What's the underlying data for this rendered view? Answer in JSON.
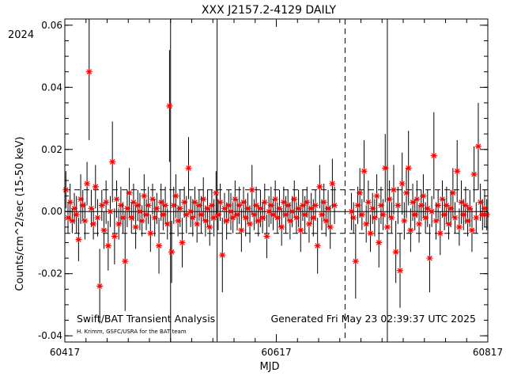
{
  "chart_data": {
    "type": "scatter",
    "title": "XXX J2157.2-4129 DAILY",
    "year_label": "2024",
    "xlabel": "MJD",
    "ylabel": "Counts/cm^2/sec (15-50 keV)",
    "xlim": [
      60417,
      60817
    ],
    "ylim": [
      -0.042,
      0.062
    ],
    "x_ticks": [
      "60417",
      "60617",
      "60817"
    ],
    "y_ticks": [
      "-0.04",
      "-0.02",
      "0.00",
      "0.02",
      "0.04",
      "0.06"
    ],
    "y_tick_values": [
      -0.04,
      -0.02,
      0.0,
      0.02,
      0.04,
      0.06
    ],
    "x_tick_values": [
      60417,
      60617,
      60817
    ],
    "reference_lines": {
      "mean": 0.0,
      "upper": 0.007,
      "lower": -0.007,
      "vertical_solid": [
        60517,
        60561,
        60722
      ],
      "vertical_dashed": 60682
    },
    "footer_left": "Swift/BAT Transient Analysis",
    "footer_credit": "H. Krimm, GSFC/USRA for the BAT team",
    "footer_right": "Generated Fri May 23 02:39:37 UTC 2025",
    "marker_color": "#ff0000",
    "series": [
      {
        "points": [
          [
            60418,
            0.007,
            0.006
          ],
          [
            60420,
            -0.002,
            0.005
          ],
          [
            60422,
            0.003,
            0.006
          ],
          [
            60424,
            -0.003,
            0.004
          ],
          [
            60426,
            0.001,
            0.005
          ],
          [
            60428,
            -0.001,
            0.006
          ],
          [
            60430,
            -0.009,
            0.007
          ],
          [
            60432,
            0.004,
            0.008
          ],
          [
            60434,
            0.002,
            0.005
          ],
          [
            60436,
            -0.003,
            0.006
          ],
          [
            60438,
            0.009,
            0.007
          ],
          [
            60440,
            0.045,
            0.022
          ],
          [
            60442,
            0.001,
            0.006
          ],
          [
            60444,
            -0.004,
            0.005
          ],
          [
            60446,
            0.008,
            0.007
          ],
          [
            60448,
            -0.002,
            0.006
          ],
          [
            60450,
            -0.024,
            0.012
          ],
          [
            60452,
            0.002,
            0.005
          ],
          [
            60454,
            -0.006,
            0.006
          ],
          [
            60456,
            0.003,
            0.007
          ],
          [
            60458,
            -0.011,
            0.008
          ],
          [
            60460,
            0.0,
            0.005
          ],
          [
            60462,
            0.016,
            0.013
          ],
          [
            60464,
            -0.008,
            0.009
          ],
          [
            60466,
            0.004,
            0.006
          ],
          [
            60468,
            -0.004,
            0.005
          ],
          [
            60470,
            0.002,
            0.006
          ],
          [
            60472,
            -0.002,
            0.005
          ],
          [
            60474,
            -0.016,
            0.016
          ],
          [
            60476,
            0.001,
            0.006
          ],
          [
            60478,
            0.006,
            0.008
          ],
          [
            60480,
            -0.002,
            0.005
          ],
          [
            60482,
            0.003,
            0.006
          ],
          [
            60484,
            -0.005,
            0.007
          ],
          [
            60486,
            0.002,
            0.005
          ],
          [
            60488,
            0.0,
            0.006
          ],
          [
            60490,
            -0.003,
            0.005
          ],
          [
            60492,
            0.005,
            0.007
          ],
          [
            60494,
            -0.001,
            0.005
          ],
          [
            60496,
            0.002,
            0.006
          ],
          [
            60498,
            -0.007,
            0.006
          ],
          [
            60500,
            0.004,
            0.005
          ],
          [
            60502,
            -0.002,
            0.006
          ],
          [
            60504,
            0.001,
            0.005
          ],
          [
            60506,
            -0.011,
            0.009
          ],
          [
            60508,
            0.003,
            0.006
          ],
          [
            60510,
            -0.001,
            0.005
          ],
          [
            60512,
            0.002,
            0.006
          ],
          [
            60514,
            -0.004,
            0.005
          ],
          [
            60516,
            0.034,
            0.018
          ],
          [
            60518,
            -0.013,
            0.01
          ],
          [
            60520,
            0.002,
            0.006
          ],
          [
            60522,
            0.005,
            0.007
          ],
          [
            60524,
            -0.003,
            0.005
          ],
          [
            60526,
            0.001,
            0.006
          ],
          [
            60528,
            -0.01,
            0.008
          ],
          [
            60530,
            0.003,
            0.005
          ],
          [
            60532,
            -0.001,
            0.006
          ],
          [
            60534,
            0.014,
            0.01
          ],
          [
            60536,
            0.0,
            0.005
          ],
          [
            60538,
            -0.002,
            0.006
          ],
          [
            60540,
            0.003,
            0.005
          ],
          [
            60542,
            -0.004,
            0.006
          ],
          [
            60544,
            0.002,
            0.005
          ],
          [
            60546,
            -0.001,
            0.006
          ],
          [
            60548,
            0.004,
            0.007
          ],
          [
            60550,
            -0.003,
            0.005
          ],
          [
            60552,
            0.001,
            0.006
          ],
          [
            60554,
            -0.005,
            0.006
          ],
          [
            60556,
            0.002,
            0.005
          ],
          [
            60558,
            -0.002,
            0.006
          ],
          [
            60560,
            0.006,
            0.007
          ],
          [
            60562,
            -0.001,
            0.005
          ],
          [
            60564,
            0.003,
            0.006
          ],
          [
            60566,
            -0.014,
            0.012
          ],
          [
            60568,
            0.001,
            0.005
          ],
          [
            60570,
            -0.003,
            0.006
          ],
          [
            60572,
            0.002,
            0.005
          ],
          [
            60574,
            0.0,
            0.006
          ],
          [
            60576,
            -0.002,
            0.005
          ],
          [
            60578,
            0.004,
            0.006
          ],
          [
            60580,
            -0.001,
            0.005
          ],
          [
            60582,
            0.002,
            0.006
          ],
          [
            60584,
            -0.006,
            0.007
          ],
          [
            60586,
            0.003,
            0.005
          ],
          [
            60588,
            -0.002,
            0.006
          ],
          [
            60590,
            0.001,
            0.005
          ],
          [
            60592,
            -0.004,
            0.006
          ],
          [
            60594,
            0.007,
            0.008
          ],
          [
            60596,
            -0.001,
            0.005
          ],
          [
            60598,
            0.002,
            0.006
          ],
          [
            60600,
            -0.003,
            0.005
          ],
          [
            60602,
            0.001,
            0.006
          ],
          [
            60604,
            -0.002,
            0.005
          ],
          [
            60606,
            0.003,
            0.006
          ],
          [
            60608,
            -0.008,
            0.007
          ],
          [
            60610,
            0.0,
            0.005
          ],
          [
            60612,
            0.002,
            0.006
          ],
          [
            60614,
            -0.001,
            0.005
          ],
          [
            60616,
            0.004,
            0.006
          ],
          [
            60618,
            -0.002,
            0.005
          ],
          [
            60620,
            0.001,
            0.006
          ],
          [
            60622,
            -0.005,
            0.006
          ],
          [
            60624,
            0.003,
            0.005
          ],
          [
            60626,
            -0.001,
            0.006
          ],
          [
            60628,
            0.002,
            0.005
          ],
          [
            60630,
            -0.003,
            0.006
          ],
          [
            60632,
            0.0,
            0.005
          ],
          [
            60634,
            0.004,
            0.006
          ],
          [
            60636,
            -0.002,
            0.005
          ],
          [
            60638,
            0.001,
            0.006
          ],
          [
            60640,
            -0.006,
            0.007
          ],
          [
            60642,
            0.002,
            0.005
          ],
          [
            60644,
            -0.001,
            0.006
          ],
          [
            60646,
            0.003,
            0.005
          ],
          [
            60648,
            -0.004,
            0.006
          ],
          [
            60650,
            0.001,
            0.005
          ],
          [
            60652,
            -0.002,
            0.006
          ],
          [
            60654,
            0.002,
            0.005
          ],
          [
            60656,
            -0.011,
            0.009
          ],
          [
            60658,
            0.008,
            0.007
          ],
          [
            60660,
            -0.001,
            0.005
          ],
          [
            60662,
            0.003,
            0.006
          ],
          [
            60664,
            -0.003,
            0.005
          ],
          [
            60666,
            0.001,
            0.006
          ],
          [
            60668,
            -0.005,
            0.007
          ],
          [
            60670,
            0.009,
            0.008
          ],
          [
            60672,
            0.002,
            0.006
          ],
          [
            60688,
            0.0,
            0.006
          ],
          [
            60690,
            -0.002,
            0.005
          ],
          [
            60692,
            -0.016,
            0.012
          ],
          [
            60694,
            0.002,
            0.006
          ],
          [
            60696,
            0.006,
            0.008
          ],
          [
            60698,
            -0.001,
            0.005
          ],
          [
            60700,
            0.013,
            0.01
          ],
          [
            60702,
            -0.004,
            0.006
          ],
          [
            60704,
            0.003,
            0.007
          ],
          [
            60706,
            -0.007,
            0.006
          ],
          [
            60708,
            0.001,
            0.005
          ],
          [
            60710,
            -0.002,
            0.006
          ],
          [
            60712,
            0.005,
            0.007
          ],
          [
            60714,
            -0.01,
            0.008
          ],
          [
            60716,
            0.002,
            0.006
          ],
          [
            60718,
            -0.001,
            0.005
          ],
          [
            60720,
            0.014,
            0.011
          ],
          [
            60722,
            -0.005,
            0.007
          ],
          [
            60724,
            0.004,
            0.006
          ],
          [
            60726,
            -0.002,
            0.005
          ],
          [
            60728,
            0.007,
            0.008
          ],
          [
            60730,
            -0.013,
            0.01
          ],
          [
            60732,
            0.002,
            0.006
          ],
          [
            60734,
            -0.019,
            0.012
          ],
          [
            60736,
            0.009,
            0.01
          ],
          [
            60738,
            -0.003,
            0.006
          ],
          [
            60740,
            0.006,
            0.008
          ],
          [
            60742,
            0.014,
            0.012
          ],
          [
            60744,
            -0.006,
            0.007
          ],
          [
            60746,
            0.003,
            0.006
          ],
          [
            60748,
            -0.001,
            0.005
          ],
          [
            60750,
            0.004,
            0.006
          ],
          [
            60752,
            -0.004,
            0.006
          ],
          [
            60754,
            0.002,
            0.005
          ],
          [
            60756,
            0.005,
            0.007
          ],
          [
            60758,
            -0.002,
            0.005
          ],
          [
            60760,
            0.001,
            0.006
          ],
          [
            60762,
            -0.015,
            0.011
          ],
          [
            60764,
            0.0,
            0.005
          ],
          [
            60766,
            0.018,
            0.014
          ],
          [
            60768,
            -0.003,
            0.006
          ],
          [
            60770,
            0.002,
            0.005
          ],
          [
            60772,
            -0.007,
            0.007
          ],
          [
            60774,
            0.004,
            0.006
          ],
          [
            60776,
            -0.001,
            0.005
          ],
          [
            60778,
            0.002,
            0.006
          ],
          [
            60780,
            -0.004,
            0.005
          ],
          [
            60782,
            0.001,
            0.006
          ],
          [
            60784,
            0.006,
            0.008
          ],
          [
            60786,
            -0.002,
            0.005
          ],
          [
            60788,
            0.013,
            0.01
          ],
          [
            60790,
            -0.005,
            0.006
          ],
          [
            60792,
            0.003,
            0.007
          ],
          [
            60794,
            -0.001,
            0.005
          ],
          [
            60796,
            0.002,
            0.006
          ],
          [
            60798,
            -0.003,
            0.005
          ],
          [
            60800,
            0.001,
            0.006
          ],
          [
            60802,
            -0.006,
            0.007
          ],
          [
            60804,
            0.012,
            0.009
          ],
          [
            60806,
            -0.002,
            0.005
          ],
          [
            60808,
            0.021,
            0.014
          ],
          [
            60810,
            0.003,
            0.006
          ],
          [
            60812,
            -0.001,
            0.005
          ],
          [
            60814,
            0.001,
            0.006
          ],
          [
            60816,
            -0.001,
            0.005
          ]
        ]
      }
    ]
  }
}
